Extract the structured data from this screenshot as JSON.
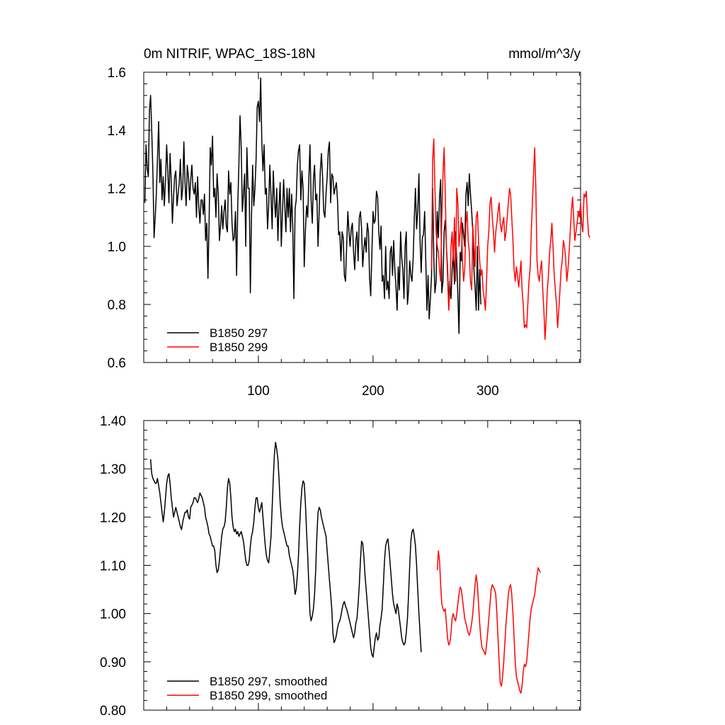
{
  "header": {
    "title": "0m NITRIF, WPAC_18S-18N",
    "units": "mmol/m^3/y"
  },
  "chart_data": [
    {
      "type": "line",
      "xlim": [
        0,
        381
      ],
      "ylim": [
        0.6,
        1.6
      ],
      "x_ticks": [
        100,
        200,
        300
      ],
      "y_ticks": [
        "0.6",
        "0.8",
        "1.0",
        "1.2",
        "1.4",
        "1.6"
      ],
      "show_x_tick_labels": true,
      "grid": false,
      "legend_placement": "bottom-left",
      "series": [
        {
          "name": "B1850 297",
          "color": "#000000",
          "x_start": 1,
          "values": [
            1.15,
            1.35,
            1.27,
            1.24,
            1.47,
            1.52,
            1.4,
            1.25,
            1.03,
            1.1,
            1.18,
            1.3,
            1.43,
            1.22,
            1.3,
            1.16,
            1.24,
            1.14,
            1.23,
            1.35,
            1.26,
            1.15,
            1.32,
            1.22,
            1.08,
            1.17,
            1.24,
            1.26,
            1.14,
            1.18,
            1.22,
            1.3,
            1.16,
            1.2,
            1.36,
            1.22,
            1.14,
            1.28,
            1.24,
            1.16,
            1.23,
            1.28,
            1.2,
            1.18,
            1.22,
            1.1,
            1.24,
            1.14,
            1.08,
            1.16,
            1.16,
            1.11,
            1.18,
            1.02,
            1.08,
            0.89,
            1.08,
            1.34,
            1.28,
            1.38,
            1.17,
            1.2,
            1.1,
            1.25,
            1.18,
            1.02,
            1.07,
            1.14,
            1.06,
            1.12,
            1.16,
            1.07,
            1.05,
            1.26,
            1.18,
            1.22,
            1.08,
            1.02,
            1.03,
            1.12,
            0.9,
            1.14,
            1.28,
            1.45,
            1.34,
            1.12,
            1.18,
            1.25,
            1.0,
            1.34,
            1.2,
            1.2,
            0.84,
            1.1,
            1.28,
            1.14,
            1.2,
            1.3,
            1.48,
            1.5,
            1.43,
            1.58,
            1.36,
            1.26,
            1.35,
            1.18,
            1.2,
            1.06,
            1.14,
            1.28,
            1.17,
            1.06,
            1.26,
            1.16,
            1.1,
            1.2,
            1.02,
            1.14,
            1.22,
            1.0,
            1.12,
            1.23,
            1.14,
            1.05,
            1.2,
            1.1,
            1.2,
            1.05,
            1.18,
            1.07,
            0.82,
            1.13,
            1.16,
            1.28,
            1.33,
            1.35,
            1.16,
            1.26,
            1.2,
            0.93,
            1.05,
            1.14,
            1.1,
            1.23,
            1.35,
            1.16,
            1.08,
            1.23,
            1.28,
            1.16,
            1.18,
            1.0,
            1.12,
            1.26,
            1.32,
            1.24,
            1.12,
            1.1,
            1.18,
            1.24,
            1.33,
            1.36,
            1.15,
            1.25,
            1.24,
            1.18,
            1.2,
            1.22,
            1.16,
            1.04,
            1.05,
            0.95,
            1.05,
            1.03,
            0.9,
            0.88,
            1.0,
            1.12,
            1.05,
            1.0,
            1.06,
            1.08,
            0.98,
            0.92,
            1.02,
            1.05,
            0.95,
            1.1,
            1.12,
            1.06,
            0.93,
            0.99,
            1.03,
            0.98,
            1.08,
            1.05,
            0.89,
            0.83,
            0.98,
            1.12,
            1.08,
            1.09,
            1.19,
            1.17,
            1.05,
            0.99,
            1.07,
            0.88,
            0.9,
            0.82,
            1.0,
            0.85,
            0.88,
            0.82,
            0.98,
            1.0,
            0.9,
            1.02,
            0.92,
            0.86,
            0.78,
            0.93,
            0.85,
            1.05,
            0.96,
            0.92,
            0.82,
            1.0,
            1.05,
            0.8,
            0.85,
            0.95,
            0.9,
            0.88,
            0.96,
            1.1,
            1.2,
            1.06,
            1.12,
            1.25,
            1.02,
            0.91,
            1.03,
            1.04,
            1.12,
            0.95,
            0.78,
            0.9,
            0.75,
            0.82,
            0.9,
            1.2,
            0.96,
            0.84,
            0.88,
            1.12,
            1.03,
            1.17,
            1.23,
            0.84,
            0.88,
            1.05,
            1.09,
            1.0,
            0.93,
            0.8,
            0.88,
            0.82,
            0.92,
            0.98,
            0.87,
            1.05,
            0.95,
            0.83,
            0.7,
            0.98,
            0.95,
            1.08,
            1.04,
            1.0,
            1.18,
            1.22,
            1.14,
            1.25,
            1.18,
            1.12,
            1.05,
            0.92,
            0.86,
            0.78,
            1.0,
            0.78,
            0.92,
            0.8
          ]
        },
        {
          "name": "B1850 299",
          "color": "#ff0000",
          "x_start": 251,
          "values": [
            0.92,
            1.3,
            1.37,
            1.2,
            1.05,
            1.0,
            0.98,
            0.92,
            0.88,
            1.1,
            1.25,
            1.34,
            1.18,
            1.0,
            0.9,
            0.78,
            0.85,
            1.0,
            1.05,
            0.95,
            1.1,
            0.88,
            1.2,
            1.15,
            1.0,
            1.05,
            1.1,
            0.95,
            0.88,
            0.92,
            1.08,
            1.12,
            1.02,
            0.98,
            0.88,
            0.85,
            1.07,
            1.0,
            0.93,
            1.1,
            1.12,
            1.02,
            0.95,
            0.9,
            0.92,
            0.85,
            0.82,
            0.78,
            0.88,
            1.0,
            1.05,
            1.15,
            1.17,
            1.1,
            1.05,
            0.98,
            1.05,
            1.08,
            1.12,
            1.15,
            1.08,
            1.05,
            1.08,
            1.1,
            1.02,
            1.05,
            1.1,
            1.15,
            1.2,
            1.18,
            1.1,
            1.02,
            0.92,
            0.88,
            0.93,
            0.9,
            0.86,
            0.9,
            0.95,
            0.85,
            0.8,
            0.72,
            0.73,
            0.72,
            0.8,
            0.88,
            0.92,
            1.05,
            1.15,
            1.25,
            1.34,
            1.2,
            0.95,
            0.9,
            0.88,
            0.92,
            0.95,
            0.85,
            0.78,
            0.68,
            0.75,
            0.85,
            0.9,
            0.98,
            1.02,
            1.08,
            1.0,
            0.9,
            0.85,
            0.8,
            0.72,
            0.78,
            0.85,
            0.92,
            0.95,
            1.02,
            1.0,
            0.96,
            0.88,
            0.92,
            0.98,
            1.05,
            1.12,
            1.17,
            1.1,
            1.02,
            1.05,
            1.08,
            1.12,
            1.1,
            1.15,
            1.08,
            1.05,
            1.18,
            1.17,
            1.19,
            1.1,
            1.04,
            1.03
          ]
        }
      ]
    },
    {
      "type": "line",
      "xlim": [
        0,
        381
      ],
      "ylim": [
        0.8,
        1.4
      ],
      "x_ticks": [
        100,
        200,
        300
      ],
      "y_ticks": [
        "0.80",
        "0.90",
        "1.00",
        "1.10",
        "1.20",
        "1.30",
        "1.40"
      ],
      "show_x_tick_labels": false,
      "grid": false,
      "legend_placement": "bottom-left",
      "series": [
        {
          "name": "B1850 297, smoothed",
          "color": "#000000",
          "x_start": 6,
          "values": [
            1.32,
            1.29,
            1.28,
            1.275,
            1.27,
            1.27,
            1.28,
            1.265,
            1.25,
            1.23,
            1.21,
            1.19,
            1.21,
            1.24,
            1.27,
            1.285,
            1.29,
            1.27,
            1.24,
            1.22,
            1.2,
            1.21,
            1.22,
            1.21,
            1.2,
            1.19,
            1.18,
            1.174,
            1.19,
            1.2,
            1.21,
            1.21,
            1.215,
            1.2,
            1.196,
            1.22,
            1.225,
            1.23,
            1.24,
            1.24,
            1.235,
            1.23,
            1.238,
            1.25,
            1.245,
            1.24,
            1.23,
            1.22,
            1.2,
            1.19,
            1.18,
            1.165,
            1.16,
            1.15,
            1.14,
            1.14,
            1.13,
            1.1,
            1.085,
            1.09,
            1.11,
            1.135,
            1.16,
            1.175,
            1.18,
            1.19,
            1.22,
            1.26,
            1.28,
            1.27,
            1.24,
            1.2,
            1.18,
            1.17,
            1.175,
            1.165,
            1.17,
            1.16,
            1.165,
            1.17,
            1.16,
            1.15,
            1.13,
            1.11,
            1.1,
            1.1,
            1.11,
            1.14,
            1.16,
            1.17,
            1.19,
            1.22,
            1.24,
            1.24,
            1.22,
            1.21,
            1.22,
            1.23,
            1.2,
            1.17,
            1.14,
            1.12,
            1.11,
            1.105,
            1.13,
            1.16,
            1.22,
            1.28,
            1.33,
            1.355,
            1.34,
            1.32,
            1.28,
            1.23,
            1.2,
            1.18,
            1.17,
            1.16,
            1.15,
            1.14,
            1.14,
            1.12,
            1.11,
            1.1,
            1.09,
            1.07,
            1.04,
            1.05,
            1.08,
            1.12,
            1.18,
            1.23,
            1.26,
            1.275,
            1.27,
            1.23,
            1.17,
            1.12,
            1.06,
            1.0,
            0.985,
            0.995,
            1.01,
            1.04,
            1.09,
            1.16,
            1.21,
            1.22,
            1.215,
            1.2,
            1.19,
            1.18,
            1.17,
            1.16,
            1.13,
            1.1,
            1.07,
            1.04,
            1.01,
            0.96,
            0.94,
            0.945,
            0.955,
            0.97,
            0.98,
            0.985,
            0.995,
            1.01,
            1.02,
            1.025,
            1.015,
            1.01,
            1.0,
            0.99,
            0.98,
            0.97,
            0.96,
            0.95,
            0.96,
            0.98,
            0.99,
            1.02,
            1.06,
            1.11,
            1.15,
            1.145,
            1.12,
            1.08,
            1.05,
            1.02,
            0.99,
            0.96,
            0.93,
            0.915,
            0.91,
            0.93,
            0.95,
            0.96,
            0.945,
            0.95,
            0.975,
            0.99,
            1.01,
            1.06,
            1.11,
            1.14,
            1.15,
            1.155,
            1.13,
            1.1,
            1.07,
            1.04,
            1.02,
            1.01,
            1.0,
            1.02,
            1.01,
            0.99,
            0.97,
            0.95,
            0.94,
            0.935,
            0.94,
            0.96,
            0.99,
            1.04,
            1.1,
            1.15,
            1.17,
            1.175,
            1.16,
            1.14,
            1.1,
            1.05,
            1.0,
            0.96,
            0.92
          ]
        },
        {
          "name": "B1850 299, smoothed",
          "color": "#ff0000",
          "x_start": 256,
          "values": [
            1.09,
            1.13,
            1.11,
            1.06,
            1.02,
            1.01,
            1.005,
            1.01,
            0.98,
            0.95,
            0.935,
            0.94,
            0.96,
            0.99,
            1.0,
            0.99,
            0.985,
            1.0,
            1.02,
            1.04,
            1.055,
            1.05,
            1.03,
            1.01,
            0.99,
            0.98,
            0.97,
            0.96,
            0.955,
            0.965,
            0.98,
            1.0,
            1.03,
            1.06,
            1.08,
            1.06,
            1.02,
            0.98,
            0.95,
            0.93,
            0.925,
            0.92,
            0.915,
            0.935,
            0.96,
            0.99,
            1.02,
            1.05,
            1.06,
            1.055,
            1.05,
            1.04,
            1.0,
            0.95,
            0.9,
            0.855,
            0.85,
            0.87,
            0.9,
            0.94,
            0.98,
            1.01,
            1.04,
            1.055,
            1.06,
            1.04,
            1.0,
            0.95,
            0.9,
            0.87,
            0.86,
            0.85,
            0.84,
            0.835,
            0.85,
            0.88,
            0.895,
            0.89,
            0.9,
            0.93,
            0.96,
            0.99,
            1.01,
            1.02,
            1.03,
            1.04,
            1.06,
            1.08,
            1.095,
            1.09,
            1.085
          ]
        }
      ]
    }
  ]
}
